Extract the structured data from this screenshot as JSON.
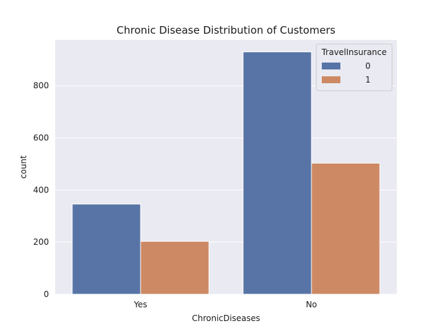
{
  "chart_data": {
    "type": "bar",
    "title": "Chronic Disease Distribution of Customers",
    "xlabel": "ChronicDiseases",
    "ylabel": "count",
    "categories": [
      "Yes",
      "No"
    ],
    "series": [
      {
        "name": "0",
        "values": [
          346,
          930
        ],
        "color": "#5874a6"
      },
      {
        "name": "1",
        "values": [
          203,
          503
        ],
        "color": "#cc8963"
      }
    ],
    "ylim": [
      0,
      976
    ],
    "yticks": [
      0,
      200,
      400,
      600,
      800
    ],
    "grid": true,
    "legend": {
      "title": "TravelInsurance",
      "placement": "top-right"
    },
    "plot_background": "#eaeaf2"
  }
}
